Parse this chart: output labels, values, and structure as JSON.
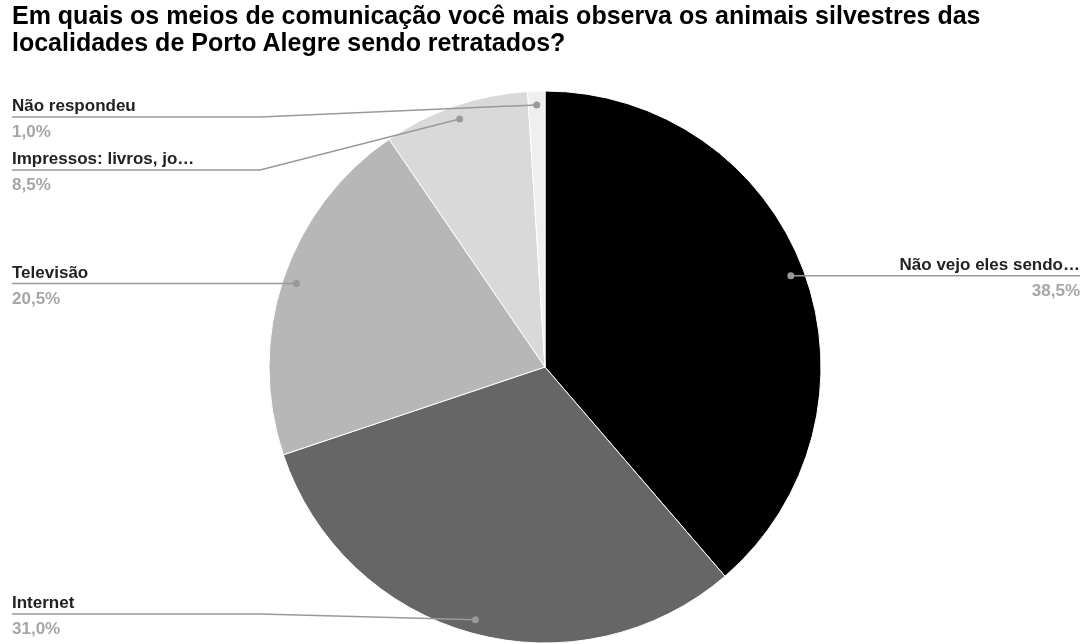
{
  "chart_data": {
    "type": "pie",
    "title": "Em quais os meios de comunicação você mais observa os animais silvestres das localidades de Porto Alegre sendo retratados?",
    "categories": [
      "Não vejo eles sendo…",
      "Internet",
      "Televisão",
      "Impressos: livros, jo…",
      "Não respondeu"
    ],
    "values": [
      38.5,
      31.0,
      20.5,
      8.5,
      1.0
    ],
    "value_labels": [
      "38,5%",
      "31,0%",
      "20,5%",
      "8,5%",
      "1,0%"
    ],
    "colors": [
      "#000000",
      "#666666",
      "#b7b7b7",
      "#d9d9d9",
      "#efefef"
    ]
  }
}
